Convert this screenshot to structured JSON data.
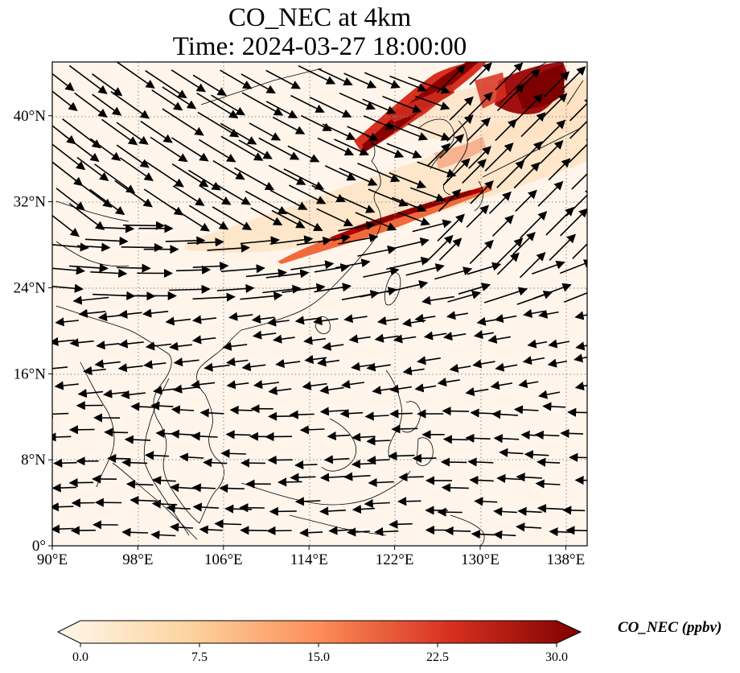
{
  "title": "CO_NEC at 4km",
  "subtitle": "Time: 2024-03-27 18:00:00",
  "map": {
    "lon_range": [
      90,
      140
    ],
    "lat_range": [
      0,
      45
    ],
    "x_ticks": [
      "90°E",
      "98°E",
      "106°E",
      "114°E",
      "122°E",
      "130°E",
      "138°E"
    ],
    "x_tick_values": [
      90,
      98,
      106,
      114,
      122,
      130,
      138
    ],
    "y_ticks": [
      "0°",
      "8°N",
      "16°N",
      "24°N",
      "32°N",
      "40°N"
    ],
    "y_tick_values": [
      0,
      8,
      16,
      24,
      32,
      40
    ],
    "gridlines": "dotted",
    "vectors": "wind arrows"
  },
  "colorbar": {
    "label": "CO_NEC (ppbv)",
    "ticks": [
      "0.0",
      "7.5",
      "15.0",
      "22.5",
      "30.0"
    ],
    "tick_values": [
      0,
      7.5,
      15,
      22.5,
      30
    ],
    "range": [
      0,
      30
    ],
    "colormap": [
      "#fff7ec",
      "#fdd49e",
      "#fc8d59",
      "#d7301f",
      "#7f0000"
    ],
    "extend": "both"
  }
}
